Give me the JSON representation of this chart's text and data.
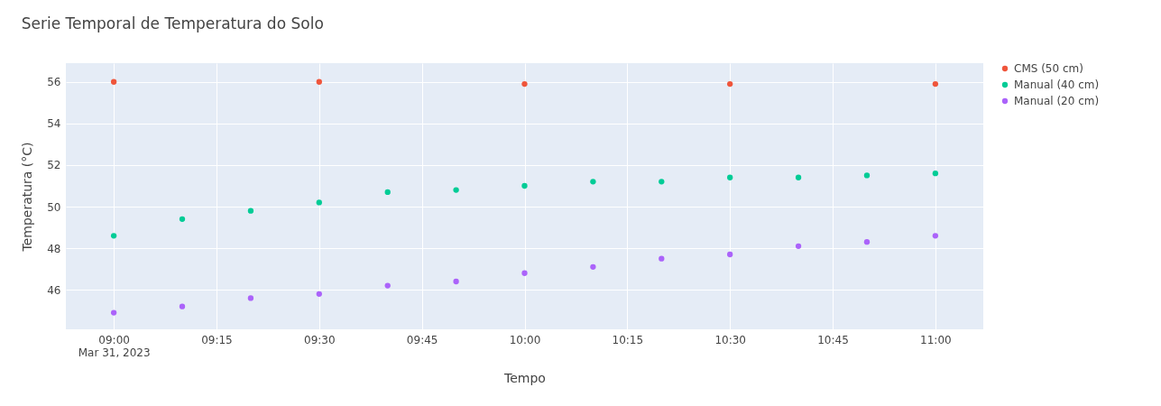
{
  "chart_data": {
    "type": "scatter",
    "title": "Serie Temporal de Temperatura do Solo",
    "xlabel": "Tempo",
    "ylabel": "Temperatura (°C)",
    "xlim": [
      "2023-03-31T08:53",
      "2023-03-31T11:07"
    ],
    "xticks": [
      {
        "value": "2023-03-31T09:00",
        "label": "09:00\nMar 31, 2023"
      },
      {
        "value": "2023-03-31T09:15",
        "label": "09:15"
      },
      {
        "value": "2023-03-31T09:30",
        "label": "09:30"
      },
      {
        "value": "2023-03-31T09:45",
        "label": "09:45"
      },
      {
        "value": "2023-03-31T10:00",
        "label": "10:00"
      },
      {
        "value": "2023-03-31T10:15",
        "label": "10:15"
      },
      {
        "value": "2023-03-31T10:30",
        "label": "10:30"
      },
      {
        "value": "2023-03-31T10:45",
        "label": "10:45"
      },
      {
        "value": "2023-03-31T11:00",
        "label": "11:00"
      }
    ],
    "ylim": [
      44.1,
      56.9
    ],
    "yticks": [
      46,
      48,
      50,
      52,
      54,
      56
    ],
    "grid": true,
    "legend": "top right",
    "marker": "circle",
    "series": [
      {
        "name": "CMS (50 cm)",
        "color": "#ef553b",
        "x": [
          "2023-03-31T09:00",
          "2023-03-31T09:30",
          "2023-03-31T10:00",
          "2023-03-31T10:30",
          "2023-03-31T11:00"
        ],
        "values": [
          56.0,
          56.0,
          55.9,
          55.9,
          55.9
        ]
      },
      {
        "name": "Manual (40 cm)",
        "color": "#00cc96",
        "x": [
          "2023-03-31T09:00",
          "2023-03-31T09:10",
          "2023-03-31T09:20",
          "2023-03-31T09:30",
          "2023-03-31T09:40",
          "2023-03-31T09:50",
          "2023-03-31T10:00",
          "2023-03-31T10:10",
          "2023-03-31T10:20",
          "2023-03-31T10:30",
          "2023-03-31T10:40",
          "2023-03-31T10:50",
          "2023-03-31T11:00"
        ],
        "values": [
          48.6,
          49.4,
          49.8,
          50.2,
          50.7,
          50.8,
          51.0,
          51.2,
          51.2,
          51.4,
          51.4,
          51.5,
          51.6
        ]
      },
      {
        "name": "Manual (20 cm)",
        "color": "#ab63fa",
        "x": [
          "2023-03-31T09:00",
          "2023-03-31T09:10",
          "2023-03-31T09:20",
          "2023-03-31T09:30",
          "2023-03-31T09:40",
          "2023-03-31T09:50",
          "2023-03-31T10:00",
          "2023-03-31T10:10",
          "2023-03-31T10:20",
          "2023-03-31T10:30",
          "2023-03-31T10:40",
          "2023-03-31T10:50",
          "2023-03-31T11:00"
        ],
        "values": [
          44.9,
          45.2,
          45.6,
          45.8,
          46.2,
          46.4,
          46.8,
          47.1,
          47.5,
          47.7,
          48.1,
          48.3,
          48.6
        ]
      }
    ]
  }
}
